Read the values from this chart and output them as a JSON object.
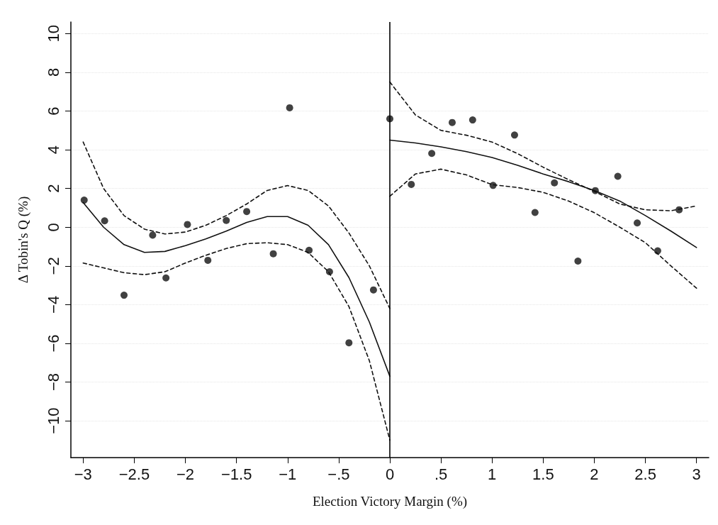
{
  "chart_data": {
    "type": "scatter",
    "xlabel": "Election Victory Margin (%)",
    "ylabel": "Δ Tobin's Q (%)",
    "xlim": [
      -3.12,
      3.12
    ],
    "ylim": [
      -11.9,
      10.6
    ],
    "xticks": [
      {
        "value": -3,
        "label": "−3"
      },
      {
        "value": -2.5,
        "label": "−2.5"
      },
      {
        "value": -2,
        "label": "−2"
      },
      {
        "value": -1.5,
        "label": "−1.5"
      },
      {
        "value": -1,
        "label": "−1"
      },
      {
        "value": -0.5,
        "label": "−.5"
      },
      0,
      {
        "value": 0.5,
        "label": ".5"
      },
      1,
      {
        "value": 1.5,
        "label": "1.5"
      },
      2,
      {
        "value": 2.5,
        "label": "2.5"
      },
      3
    ],
    "yticks": [
      {
        "value": -10,
        "label": "−10"
      },
      {
        "value": -8,
        "label": "−8"
      },
      {
        "value": -6,
        "label": "−6"
      },
      {
        "value": -4,
        "label": "−4"
      },
      {
        "value": -2,
        "label": "−2"
      },
      0,
      2,
      4,
      6,
      8,
      10
    ],
    "grid": "y",
    "ref_lines": [
      {
        "axis": "x",
        "value": 0,
        "color": "#000000",
        "line_style": "solid"
      }
    ],
    "series": [
      {
        "marker": "circle",
        "color": "#111111",
        "x": [
          -2.99,
          -2.79,
          -2.6,
          -2.32,
          -2.19,
          -1.98,
          -1.78,
          -1.6,
          -1.4,
          -1.14,
          -0.98,
          -0.79,
          -0.59,
          -0.4,
          -0.16,
          0.0,
          0.21,
          0.41,
          0.61,
          0.81,
          1.01,
          1.22,
          1.42,
          1.61,
          1.84,
          2.01,
          2.23,
          2.42,
          2.62,
          2.83
        ],
        "values": [
          1.4,
          0.33,
          -3.51,
          -0.41,
          -2.62,
          0.14,
          -1.71,
          0.35,
          0.81,
          -1.37,
          6.17,
          -1.19,
          -2.3,
          -5.97,
          -3.24,
          5.6,
          2.21,
          3.81,
          5.41,
          5.54,
          2.16,
          4.76,
          0.76,
          2.29,
          -1.75,
          1.89,
          2.63,
          0.22,
          -1.22,
          0.9
        ]
      },
      {
        "type": "line",
        "marker": "none",
        "line_style": "solid",
        "color": "#111111",
        "x": [
          -3,
          -2.8,
          -2.6,
          -2.4,
          -2.2,
          -2,
          -1.8,
          -1.6,
          -1.4,
          -1.2,
          -1,
          -0.8,
          -0.6,
          -0.4,
          -0.2,
          0
        ],
        "values": [
          1.27,
          0.0,
          -0.9,
          -1.3,
          -1.25,
          -0.95,
          -0.6,
          -0.2,
          0.25,
          0.55,
          0.55,
          0.1,
          -0.9,
          -2.6,
          -4.9,
          -7.7
        ]
      },
      {
        "type": "line",
        "marker": "none",
        "line_style": "dashed",
        "color": "#111111",
        "x": [
          -3,
          -2.8,
          -2.6,
          -2.4,
          -2.2,
          -2,
          -1.8,
          -1.6,
          -1.4,
          -1.2,
          -1,
          -0.8,
          -0.6,
          -0.4,
          -0.2,
          0
        ],
        "values": [
          4.4,
          2.0,
          0.6,
          -0.1,
          -0.35,
          -0.25,
          0.1,
          0.6,
          1.2,
          1.9,
          2.15,
          1.9,
          1.1,
          -0.3,
          -2.0,
          -4.2
        ]
      },
      {
        "type": "line",
        "marker": "none",
        "line_style": "dashed",
        "color": "#111111",
        "x": [
          -3,
          -2.8,
          -2.6,
          -2.4,
          -2.2,
          -2,
          -1.8,
          -1.6,
          -1.4,
          -1.2,
          -1,
          -0.8,
          -0.6,
          -0.4,
          -0.2,
          0
        ],
        "values": [
          -1.85,
          -2.1,
          -2.35,
          -2.45,
          -2.3,
          -1.85,
          -1.45,
          -1.1,
          -0.85,
          -0.8,
          -0.9,
          -1.3,
          -2.3,
          -4.1,
          -6.9,
          -11.0
        ]
      },
      {
        "type": "line",
        "marker": "none",
        "line_style": "solid",
        "color": "#111111",
        "x": [
          0,
          0.25,
          0.5,
          0.75,
          1,
          1.25,
          1.5,
          1.75,
          2,
          2.25,
          2.5,
          2.75,
          3
        ],
        "values": [
          4.5,
          4.35,
          4.15,
          3.9,
          3.6,
          3.2,
          2.75,
          2.35,
          1.9,
          1.35,
          0.6,
          -0.2,
          -1.05
        ]
      },
      {
        "type": "line",
        "marker": "none",
        "line_style": "dashed",
        "color": "#111111",
        "x": [
          0,
          0.25,
          0.5,
          0.75,
          1,
          1.25,
          1.5,
          1.75,
          2,
          2.25,
          2.5,
          2.75,
          3
        ],
        "values": [
          7.5,
          5.8,
          5.0,
          4.75,
          4.4,
          3.8,
          3.1,
          2.45,
          1.85,
          1.2,
          0.9,
          0.85,
          1.1
        ]
      },
      {
        "type": "line",
        "marker": "none",
        "line_style": "dashed",
        "color": "#111111",
        "x": [
          0,
          0.25,
          0.5,
          0.75,
          1,
          1.25,
          1.5,
          1.75,
          2,
          2.25,
          2.5,
          2.75,
          3
        ],
        "values": [
          1.6,
          2.75,
          3.0,
          2.7,
          2.2,
          2.05,
          1.8,
          1.35,
          0.75,
          0.0,
          -0.8,
          -2.0,
          -3.15
        ]
      }
    ]
  }
}
